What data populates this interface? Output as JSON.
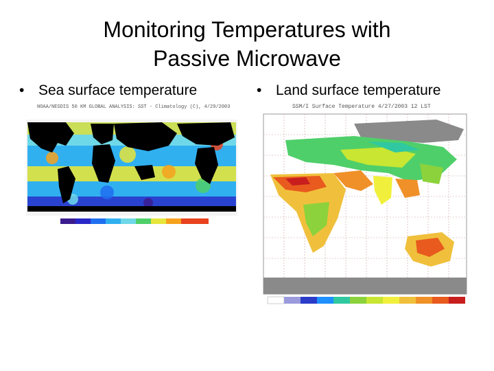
{
  "slide": {
    "title_line1": "Monitoring Temperatures with",
    "title_line2": "Passive Microwave",
    "bullets": [
      {
        "marker": "•",
        "text": "Sea surface temperature"
      },
      {
        "marker": "•",
        "text": "Land surface temperature"
      }
    ]
  },
  "images": {
    "sst": {
      "caption": "NOAA/NESDIS 50 KM GLOBAL ANALYSIS: SST - Climatology (C), 4/29/2003",
      "icon": "sst-anomaly-map",
      "colors": [
        "#3b1c8f",
        "#2828c8",
        "#1f6ff0",
        "#31b0f0",
        "#6fd8e8",
        "#4fcf6a",
        "#e6e63c",
        "#f6a21e",
        "#e8421e"
      ]
    },
    "lst": {
      "caption": "SSM/I Surface Temperature 4/27/2003 12 LST",
      "icon": "land-temperature-map",
      "colors": [
        "#ffffff",
        "#9a9adc",
        "#2a3cc8",
        "#1e90ff",
        "#30c8a0",
        "#8cd23c",
        "#c8e632",
        "#f0f03c",
        "#f0c03c",
        "#f09028",
        "#e85a1e",
        "#c81e1e"
      ]
    }
  }
}
